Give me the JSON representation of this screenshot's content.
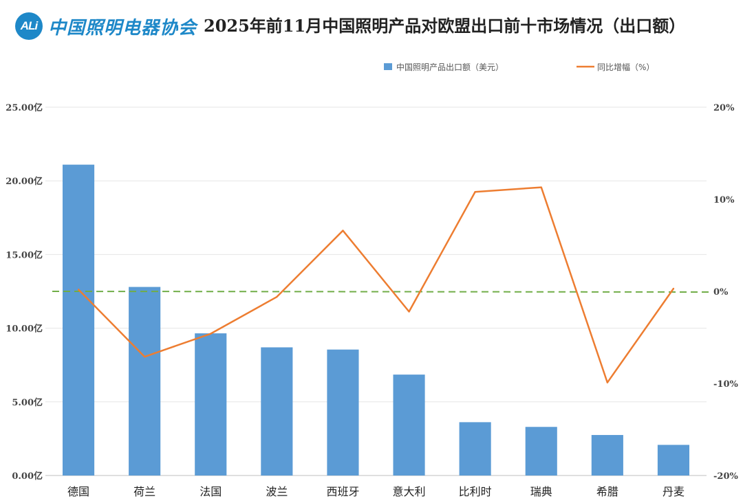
{
  "header": {
    "logo_mark": "ALi",
    "logo_text": "中国照明电器协会",
    "title": "2025年前11月中国照明产品对欧盟出口前十市场情况（出口额）"
  },
  "chart_data": {
    "type": "bar+line",
    "title": "2025年前11月中国照明产品对欧盟出口前十市场情况（出口额）",
    "categories": [
      "德国",
      "荷兰",
      "法国",
      "波兰",
      "西班牙",
      "意大利",
      "比利时",
      "瑞典",
      "希腊",
      "丹麦"
    ],
    "series": [
      {
        "name": "中国照明产品出口额（美元）",
        "type": "bar",
        "axis": "left",
        "color": "#5b9bd5",
        "values": [
          21.1,
          12.8,
          9.65,
          8.7,
          8.55,
          6.85,
          3.62,
          3.3,
          2.75,
          2.08
        ]
      },
      {
        "name": "同比增幅（%）",
        "type": "line",
        "axis": "right",
        "color": "#ed7d31",
        "values": [
          0.2,
          -7.1,
          -4.6,
          -0.6,
          6.6,
          -2.2,
          10.8,
          11.3,
          -9.9,
          0.3
        ]
      }
    ],
    "left_axis": {
      "ylim": [
        0,
        25
      ],
      "ticks": [
        "0.00亿",
        "5.00亿",
        "10.00亿",
        "15.00亿",
        "20.00亿",
        "25.00亿"
      ]
    },
    "right_axis": {
      "ylim": [
        -20,
        20
      ],
      "ticks": [
        "-20%",
        "-10%",
        "0%",
        "10%",
        "20%"
      ]
    },
    "reference_line": {
      "value": 0,
      "axis": "right",
      "color": "#70ad47",
      "style": "dashed"
    },
    "legend": {
      "placement": "top-right"
    },
    "grid": true
  }
}
